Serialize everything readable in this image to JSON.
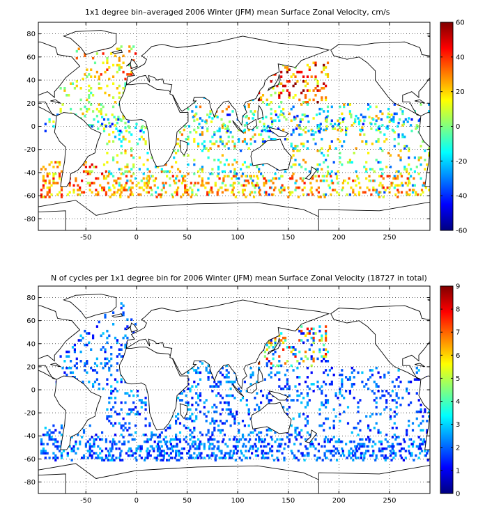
{
  "chart_data": [
    {
      "type": "heatmap",
      "title": "1x1 degree bin–averaged 2006 Winter (JFM) mean Surface Zonal Velocity, cm/s",
      "xlabel": "",
      "ylabel": "",
      "xlim": [
        -97,
        290
      ],
      "ylim": [
        -90,
        90
      ],
      "xticks": [
        -50,
        0,
        50,
        100,
        150,
        200,
        250
      ],
      "yticks": [
        80,
        60,
        40,
        20,
        0,
        -20,
        -40,
        -60,
        -80
      ],
      "colorbar": {
        "min": -60,
        "max": 60,
        "ticks": [
          60,
          40,
          20,
          0,
          -20,
          -40,
          -60
        ],
        "colormap": "jet"
      },
      "grid": true,
      "regions": [
        {
          "lon": [
            -80,
            -10
          ],
          "lat": [
            0,
            40
          ],
          "density": 0.12,
          "vmin": -10,
          "vmax": 25
        },
        {
          "lon": [
            -60,
            0
          ],
          "lat": [
            40,
            70
          ],
          "density": 0.14,
          "vmin": -5,
          "vmax": 45
        },
        {
          "lon": [
            -30,
            50
          ],
          "lat": [
            -60,
            0
          ],
          "density": 0.14,
          "vmin": -25,
          "vmax": 35
        },
        {
          "lon": [
            50,
            120
          ],
          "lat": [
            -60,
            25
          ],
          "density": 0.14,
          "vmin": -35,
          "vmax": 35
        },
        {
          "lon": [
            120,
            190
          ],
          "lat": [
            20,
            55
          ],
          "density": 0.18,
          "vmin": 0,
          "vmax": 60
        },
        {
          "lon": [
            120,
            290
          ],
          "lat": [
            -60,
            20
          ],
          "density": 0.12,
          "vmin": -40,
          "vmax": 30
        },
        {
          "lon": [
            -95,
            -30
          ],
          "lat": [
            -60,
            -30
          ],
          "density": 0.18,
          "vmin": 5,
          "vmax": 50
        },
        {
          "lon": [
            -95,
            290
          ],
          "lat": [
            -62,
            -42
          ],
          "density": 0.16,
          "vmin": 10,
          "vmax": 45
        },
        {
          "lon": [
            -95,
            290
          ],
          "lat": [
            -5,
            10
          ],
          "density": 0.12,
          "vmin": -45,
          "vmax": 15
        }
      ]
    },
    {
      "type": "heatmap",
      "title": "N of cycles per 1x1 degree bin for 2006 Winter (JFM) mean Surface Zonal Velocity (18727 in total)",
      "xlabel": "",
      "ylabel": "",
      "xlim": [
        -97,
        290
      ],
      "ylim": [
        -90,
        90
      ],
      "xticks": [
        -50,
        0,
        50,
        100,
        150,
        200,
        250
      ],
      "yticks": [
        80,
        60,
        40,
        20,
        0,
        -20,
        -40,
        -60,
        -80
      ],
      "colorbar": {
        "min": 0,
        "max": 9,
        "ticks": [
          9,
          8,
          7,
          6,
          5,
          4,
          3,
          2,
          1,
          0
        ],
        "colormap": "jet"
      },
      "grid": true,
      "total_cycles": 18727,
      "regions": [
        {
          "lon": [
            -80,
            -10
          ],
          "lat": [
            0,
            40
          ],
          "density": 0.14,
          "vmin": 1,
          "vmax": 3
        },
        {
          "lon": [
            -60,
            0
          ],
          "lat": [
            40,
            75
          ],
          "density": 0.12,
          "vmin": 1,
          "vmax": 3
        },
        {
          "lon": [
            -30,
            50
          ],
          "lat": [
            -60,
            0
          ],
          "density": 0.18,
          "vmin": 1,
          "vmax": 3
        },
        {
          "lon": [
            50,
            120
          ],
          "lat": [
            -60,
            25
          ],
          "density": 0.18,
          "vmin": 1,
          "vmax": 3
        },
        {
          "lon": [
            120,
            190
          ],
          "lat": [
            20,
            55
          ],
          "density": 0.22,
          "vmin": 1,
          "vmax": 8
        },
        {
          "lon": [
            120,
            290
          ],
          "lat": [
            -60,
            20
          ],
          "density": 0.14,
          "vmin": 1,
          "vmax": 3
        },
        {
          "lon": [
            -95,
            -30
          ],
          "lat": [
            -60,
            -30
          ],
          "density": 0.2,
          "vmin": 1,
          "vmax": 3
        },
        {
          "lon": [
            -95,
            290
          ],
          "lat": [
            -62,
            -42
          ],
          "density": 0.2,
          "vmin": 1,
          "vmax": 3
        }
      ]
    }
  ]
}
